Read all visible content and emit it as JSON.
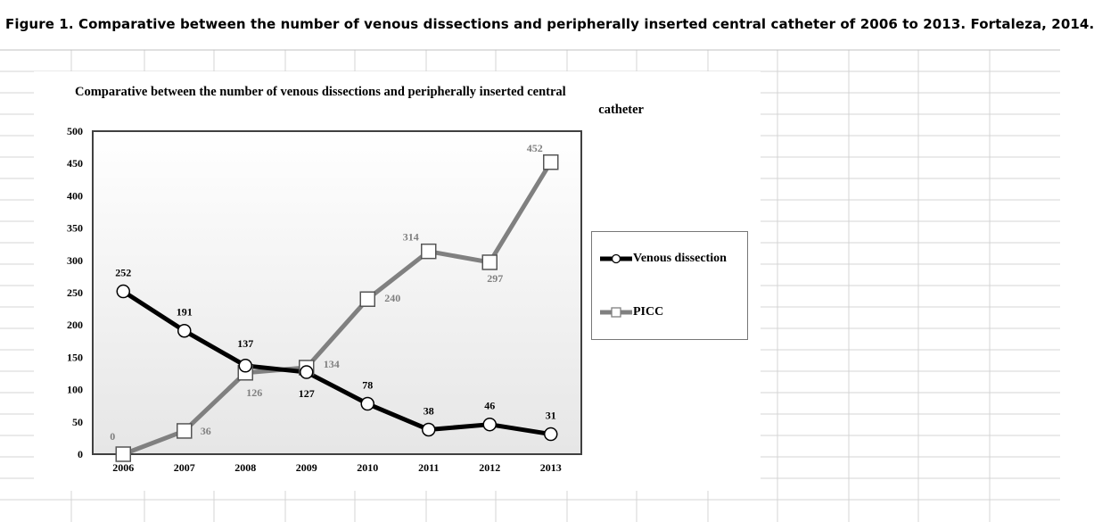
{
  "caption": "Figure 1. Comparative between the number of venous dissections and peripherally inserted central catheter of 2006 to 2013. Fortaleza, 2014.",
  "chart_data": {
    "type": "line",
    "title_line1": "Comparative between the number of venous dissections and peripherally inserted central",
    "title_line2": "catheter",
    "categories": [
      "2006",
      "2007",
      "2008",
      "2009",
      "2010",
      "2011",
      "2012",
      "2013"
    ],
    "ylim": [
      0,
      500
    ],
    "yticks": [
      0,
      50,
      100,
      150,
      200,
      250,
      300,
      350,
      400,
      450,
      500
    ],
    "grid": false,
    "legend_position": "right",
    "series": [
      {
        "name": "Venous dissection",
        "values": [
          252,
          191,
          137,
          127,
          78,
          38,
          46,
          31
        ],
        "color": "#000000",
        "marker": "circle"
      },
      {
        "name": "PICC",
        "values": [
          0,
          36,
          126,
          134,
          240,
          314,
          297,
          452
        ],
        "color": "#808080",
        "marker": "square"
      }
    ]
  }
}
